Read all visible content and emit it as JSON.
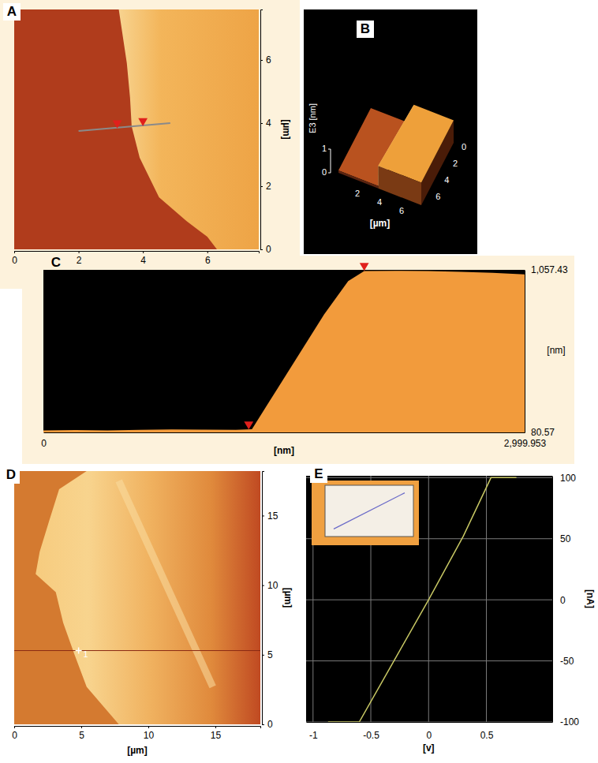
{
  "chart_data": [
    {
      "type": "image",
      "title": "A",
      "xlabel": "[µm]",
      "ylabel": "[µm]",
      "xlim": [
        0,
        7.6
      ],
      "ylim": [
        0,
        7.6
      ],
      "xticks": [
        0,
        2,
        4,
        6
      ],
      "yticks": [
        0,
        2,
        4,
        6
      ],
      "edge": {
        "x": [
          3.25,
          3.5,
          3.6,
          3.65,
          3.9,
          4.5,
          5.35,
          6.0,
          6.3
        ],
        "y": [
          7.6,
          5.9,
          4.8,
          3.9,
          2.9,
          1.65,
          0.9,
          0.4,
          0
        ]
      },
      "profile": {
        "x": [
          2.0,
          4.85
        ],
        "y": [
          3.75,
          4.0
        ]
      },
      "cursors": {
        "x": [
          3.2,
          4.0
        ],
        "y": [
          3.85,
          3.92
        ]
      }
    },
    {
      "type": "surface3d",
      "title": "B",
      "xlabel": "[µm]",
      "zlabel": "E3 [nm]",
      "xlim": [
        0,
        7.5
      ],
      "ylim": [
        0,
        7.5
      ],
      "zlim": [
        0,
        1
      ],
      "xticks": [
        2,
        4,
        6
      ],
      "yticks": [
        0,
        2,
        4,
        6
      ],
      "zticks": [
        0,
        1
      ],
      "edge": {
        "x": [
          3.9,
          3.6
        ],
        "y": [
          0,
          7.5
        ]
      },
      "heights": [
        0.1,
        0.95
      ]
    },
    {
      "type": "area",
      "title": "C",
      "xlabel": "[nm]",
      "ylabel": "[nm]",
      "color": "#f29b3c",
      "xlim": [
        0,
        2999.953
      ],
      "ylim": [
        80.57,
        1057.43
      ],
      "xticks": [
        0,
        {
          "value": 2999.953,
          "label": "2,999.953"
        }
      ],
      "yticks": [
        80.57,
        {
          "value": 1057.43,
          "label": "1,057.43"
        }
      ],
      "x": [
        0,
        200,
        400,
        600,
        800,
        1000,
        1200,
        1300,
        1450,
        1600,
        1750,
        1900,
        2000,
        2200,
        2400,
        2600,
        2800,
        2999.953
      ],
      "values": [
        92,
        95,
        93,
        96,
        98,
        97,
        96,
        100,
        330,
        560,
        790,
        990,
        1050,
        1052,
        1050,
        1045,
        1040,
        1030
      ],
      "cursors": {
        "x": [
          1280,
          2000
        ],
        "y": [
          97,
          1050
        ]
      }
    },
    {
      "type": "image",
      "title": "D",
      "xlabel": "[µm]",
      "ylabel": "[µm]",
      "xlim": [
        0,
        18.35
      ],
      "ylim": [
        0,
        18.2
      ],
      "xticks": [
        0,
        5,
        10,
        15
      ],
      "yticks": [
        0,
        5,
        10,
        15
      ],
      "edge": {
        "x": [
          5.4,
          3.35,
          2.6,
          1.9,
          1.6,
          3.1,
          3.65,
          4.5,
          5.4,
          7.8
        ],
        "y": [
          18.2,
          16.9,
          14.6,
          12.4,
          10.8,
          9.5,
          7.3,
          5.0,
          2.7,
          0
        ]
      },
      "ridge": {
        "x": [
          7.8,
          14.8
        ],
        "y": [
          17.5,
          2.7
        ]
      },
      "cursor": {
        "x": 4.8,
        "y": 5.3,
        "label": "1"
      }
    },
    {
      "type": "line",
      "title": "E",
      "xlabel": "[v]",
      "ylabel": "[nA]",
      "color": "#c8c864",
      "grid": true,
      "xlim": [
        -1.06,
        1.07
      ],
      "ylim": [
        -100,
        101.5
      ],
      "xticks": [
        -1,
        -0.5,
        0,
        0.5
      ],
      "yticks": [
        -100,
        -50,
        0,
        50,
        100
      ],
      "x": [
        -0.87,
        -0.6,
        -0.3,
        0,
        0.3,
        0.54,
        0.76
      ],
      "values": [
        -100,
        -100,
        -50,
        0,
        52,
        100,
        100
      ],
      "inset": {
        "xlim": [
          -0.6,
          0.6
        ],
        "ylim": [
          -0.6,
          0.6
        ],
        "x": [
          -0.5,
          0.5
        ],
        "values": [
          -0.45,
          0.45
        ]
      }
    }
  ]
}
